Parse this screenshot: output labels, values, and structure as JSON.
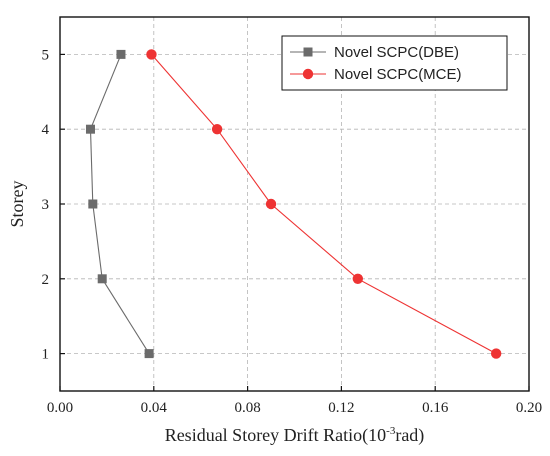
{
  "chart_data": {
    "type": "line",
    "xlabel": {
      "main": "Residual Storey Drift Ratio(10",
      "sup": "-3",
      "unit": "rad)"
    },
    "ylabel": "Storey",
    "xlim": [
      0,
      0.2
    ],
    "ylim": [
      0.5,
      5.5
    ],
    "x_ticks": [
      "0.00",
      "0.04",
      "0.08",
      "0.12",
      "0.16",
      "0.20"
    ],
    "y_ticks": [
      "1",
      "2",
      "3",
      "4",
      "5"
    ],
    "grid": true,
    "legend_position": "top-right",
    "series": [
      {
        "name": "Novel SCPC(DBE)",
        "color": "#6b6b6b",
        "marker": "square",
        "points": [
          {
            "x": 0.038,
            "y": 1
          },
          {
            "x": 0.018,
            "y": 2
          },
          {
            "x": 0.014,
            "y": 3
          },
          {
            "x": 0.013,
            "y": 4
          },
          {
            "x": 0.026,
            "y": 5
          }
        ]
      },
      {
        "name": "Novel SCPC(MCE)",
        "color": "#ee3333",
        "marker": "circle",
        "points": [
          {
            "x": 0.186,
            "y": 1
          },
          {
            "x": 0.127,
            "y": 2
          },
          {
            "x": 0.09,
            "y": 3
          },
          {
            "x": 0.067,
            "y": 4
          },
          {
            "x": 0.039,
            "y": 5
          }
        ]
      }
    ]
  }
}
